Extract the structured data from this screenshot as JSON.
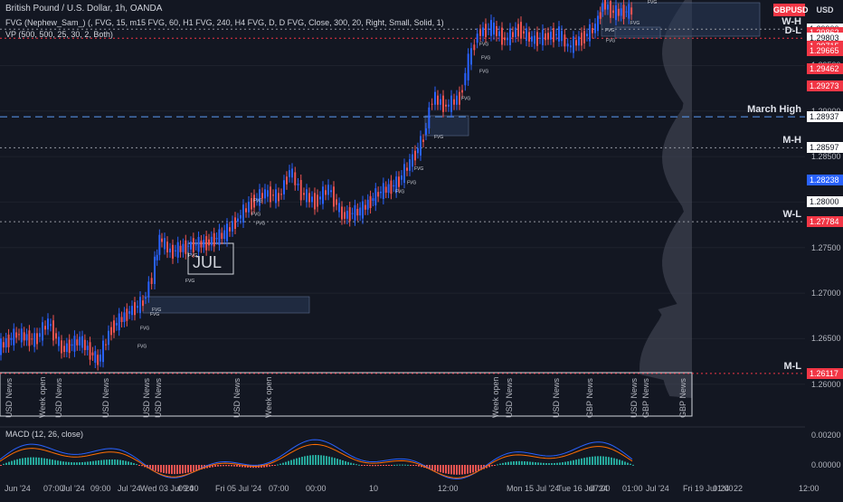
{
  "header": {
    "title": "British Pound / U.S. Dollar, 1h, OANDA",
    "fvg_indicator": "FVG (Nephew_Sam_) (, FVG, 15, m15 FVG, 60, H1 FVG, 240, H4 FVG, D, D FVG, Close, 300, 20, Right, Small, Solid, 1)",
    "vp_indicator": "VP (500, 500, 25, 30, 2, Both)",
    "macd_indicator": "MACD (12, 26, close)"
  },
  "symbol_tag": "GBPUSD",
  "currency_tag": "USD",
  "colors": {
    "background": "#131722",
    "up": "#2962ff",
    "down": "#ef5350",
    "fvg_box": "#2a3a5a",
    "grid": "#1e222d"
  },
  "chart_data": {
    "type": "line",
    "y_range": [
      1.2555,
      1.3022
    ],
    "price_ticks": [
      "1.29500",
      "1.29000",
      "1.28500",
      "1.28000",
      "1.27500",
      "1.27000",
      "1.26500",
      "1.26000"
    ],
    "price_tags": [
      {
        "value": "1.29900",
        "bg": "#ffffff",
        "fg": "#131722"
      },
      {
        "value": "1.29862",
        "bg": "#f23645",
        "fg": "#ffffff"
      },
      {
        "value": "1.29803",
        "bg": "#ffffff",
        "fg": "#131722"
      },
      {
        "value": "1.29715",
        "bg": "#f23645",
        "fg": "#ffffff"
      },
      {
        "value": "1.29665",
        "bg": "#f23645",
        "fg": "#ffffff"
      },
      {
        "value": "1.29462",
        "bg": "#f23645",
        "fg": "#ffffff"
      },
      {
        "value": "1.29273",
        "bg": "#f23645",
        "fg": "#ffffff"
      },
      {
        "value": "1.28937",
        "bg": "#ffffff",
        "fg": "#131722"
      },
      {
        "value": "1.28597",
        "bg": "#ffffff",
        "fg": "#131722"
      },
      {
        "value": "1.28238",
        "bg": "#2962ff",
        "fg": "#ffffff"
      },
      {
        "value": "1.28000",
        "bg": "#ffffff",
        "fg": "#131722"
      },
      {
        "value": "1.27784",
        "bg": "#f23645",
        "fg": "#ffffff"
      },
      {
        "value": "1.26117",
        "bg": "#f23645",
        "fg": "#ffffff"
      }
    ],
    "levels": [
      {
        "label": "W-H",
        "price": 1.299,
        "color": "#9598a1",
        "style": "dotted"
      },
      {
        "label": "D-L",
        "price": 1.298,
        "color": "#f23645",
        "style": "dotted"
      },
      {
        "label": "March High",
        "price": 1.28937,
        "color": "#5b9cf6",
        "style": "dashed"
      },
      {
        "label": "M-H",
        "price": 1.28597,
        "color": "#9598a1",
        "style": "dotted"
      },
      {
        "label": "W-L",
        "price": 1.27784,
        "color": "#9598a1",
        "style": "dotted"
      },
      {
        "label": "M-L",
        "price": 1.26117,
        "color": "#f23645",
        "style": "dotted"
      }
    ],
    "price_path": [
      [
        0,
        1.264
      ],
      [
        20,
        1.2655
      ],
      [
        40,
        1.2648
      ],
      [
        55,
        1.2668
      ],
      [
        70,
        1.2638
      ],
      [
        90,
        1.2648
      ],
      [
        110,
        1.2625
      ],
      [
        125,
        1.2662
      ],
      [
        145,
        1.268
      ],
      [
        160,
        1.269
      ],
      [
        170,
        1.2718
      ],
      [
        178,
        1.276
      ],
      [
        190,
        1.2745
      ],
      [
        210,
        1.2752
      ],
      [
        230,
        1.2755
      ],
      [
        250,
        1.2765
      ],
      [
        265,
        1.2782
      ],
      [
        280,
        1.28
      ],
      [
        295,
        1.281
      ],
      [
        310,
        1.2805
      ],
      [
        322,
        1.2835
      ],
      [
        335,
        1.281
      ],
      [
        350,
        1.28
      ],
      [
        365,
        1.2815
      ],
      [
        380,
        1.2785
      ],
      [
        400,
        1.279
      ],
      [
        420,
        1.281
      ],
      [
        440,
        1.282
      ],
      [
        455,
        1.2843
      ],
      [
        470,
        1.287
      ],
      [
        480,
        1.2915
      ],
      [
        495,
        1.2905
      ],
      [
        510,
        1.2915
      ],
      [
        520,
        1.2955
      ],
      [
        530,
        1.2985
      ],
      [
        545,
        1.2992
      ],
      [
        560,
        1.2978
      ],
      [
        575,
        1.299
      ],
      [
        590,
        1.2978
      ],
      [
        605,
        1.2982
      ],
      [
        620,
        1.2985
      ],
      [
        630,
        1.297
      ],
      [
        645,
        1.298
      ],
      [
        660,
        1.2992
      ],
      [
        668,
        1.3018
      ],
      [
        680,
        1.3008
      ],
      [
        700,
        1.301
      ]
    ],
    "fvg_labels": [
      {
        "x": 530,
        "price": 1.2972
      },
      {
        "x": 532,
        "price": 1.2957
      },
      {
        "x": 530,
        "price": 1.2942
      },
      {
        "x": 510,
        "price": 1.2912
      },
      {
        "x": 480,
        "price": 1.287
      },
      {
        "x": 458,
        "price": 1.2835
      },
      {
        "x": 450,
        "price": 1.282
      },
      {
        "x": 437,
        "price": 1.281
      },
      {
        "x": 280,
        "price": 1.28
      },
      {
        "x": 278,
        "price": 1.2785
      },
      {
        "x": 283,
        "price": 1.2775
      },
      {
        "x": 208,
        "price": 1.274
      },
      {
        "x": 205,
        "price": 1.2712
      },
      {
        "x": 168,
        "price": 1.268
      },
      {
        "x": 166,
        "price": 1.2675
      },
      {
        "x": 155,
        "price": 1.266
      },
      {
        "x": 152,
        "price": 1.264
      },
      {
        "x": 669,
        "price": 1.2987
      },
      {
        "x": 670,
        "price": 1.2976
      },
      {
        "x": 697,
        "price": 1.2995
      },
      {
        "x": 716,
        "price": 1.3018
      }
    ],
    "news": [
      {
        "x": 13,
        "label": "USD News"
      },
      {
        "x": 50,
        "label": "Week open"
      },
      {
        "x": 68,
        "label": "USD News"
      },
      {
        "x": 120,
        "label": "USD News"
      },
      {
        "x": 165,
        "label": "USD News"
      },
      {
        "x": 178,
        "label": "USD News"
      },
      {
        "x": 265,
        "label": "USD News"
      },
      {
        "x": 300,
        "label": "Week open"
      },
      {
        "x": 551,
        "label": "Week open"
      },
      {
        "x": 566,
        "label": "USD News"
      },
      {
        "x": 618,
        "label": "USD News"
      },
      {
        "x": 655,
        "label": "GBP News"
      },
      {
        "x": 704,
        "label": "USD News"
      },
      {
        "x": 717,
        "label": "GBP News"
      },
      {
        "x": 758,
        "label": "GBP News"
      }
    ],
    "watermark": "JUL",
    "macd": {
      "label": "MACD (12, 26, close)",
      "ticks": [
        "0.00200",
        "0.00000"
      ]
    },
    "x_ticks": [
      {
        "x": 5,
        "label": "Jun '24"
      },
      {
        "x": 48,
        "label": "07:00"
      },
      {
        "x": 68,
        "label": "Jul '24"
      },
      {
        "x": 100,
        "label": "09:00"
      },
      {
        "x": 130,
        "label": "Jul '24"
      },
      {
        "x": 155,
        "label": "Wed 03 Jul '24"
      },
      {
        "x": 197,
        "label": "09:00"
      },
      {
        "x": 238,
        "label": "Fri 05 Jul '24"
      },
      {
        "x": 297,
        "label": "07:00"
      },
      {
        "x": 338,
        "label": "00:00"
      },
      {
        "x": 408,
        "label": "10"
      },
      {
        "x": 484,
        "label": "12:00"
      },
      {
        "x": 560,
        "label": "Mon 15 Jul '24"
      },
      {
        "x": 616,
        "label": "Tue 16 Jul '24"
      },
      {
        "x": 652,
        "label": "07:00"
      },
      {
        "x": 688,
        "label": "01:00"
      },
      {
        "x": 714,
        "label": "Jul '24"
      },
      {
        "x": 755,
        "label": "Fri 19 Jul '24"
      },
      {
        "x": 788,
        "label": "01:00"
      },
      {
        "x": 811,
        "label": "22"
      },
      {
        "x": 883,
        "label": "12:00"
      }
    ]
  }
}
